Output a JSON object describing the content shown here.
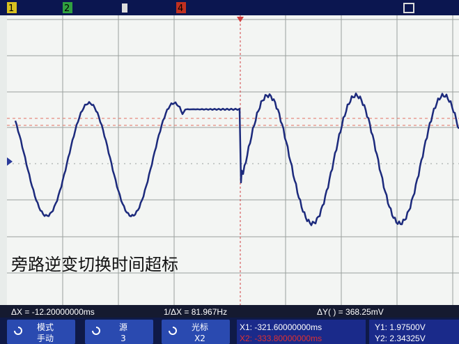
{
  "top_bar": {
    "channels": [
      "1",
      "2",
      "4"
    ]
  },
  "caption": "旁路逆变切换时间超标",
  "measurements": {
    "delta_x": "ΔX = -12.20000000ms",
    "inverse_delta_x": "1/ΔX = 81.967Hz",
    "delta_y": "ΔY( ) = 368.25mV"
  },
  "softkeys": [
    {
      "label": "模式",
      "value": "手动"
    },
    {
      "label": "源",
      "value": "3"
    },
    {
      "label": "光标",
      "value": "X2"
    }
  ],
  "cursors": {
    "x1": "X1: -321.60000000ms",
    "x2": "X2: -333.80000000ms",
    "y1": "Y1: 1.97500V",
    "y2": "Y2: 2.34325V"
  }
}
